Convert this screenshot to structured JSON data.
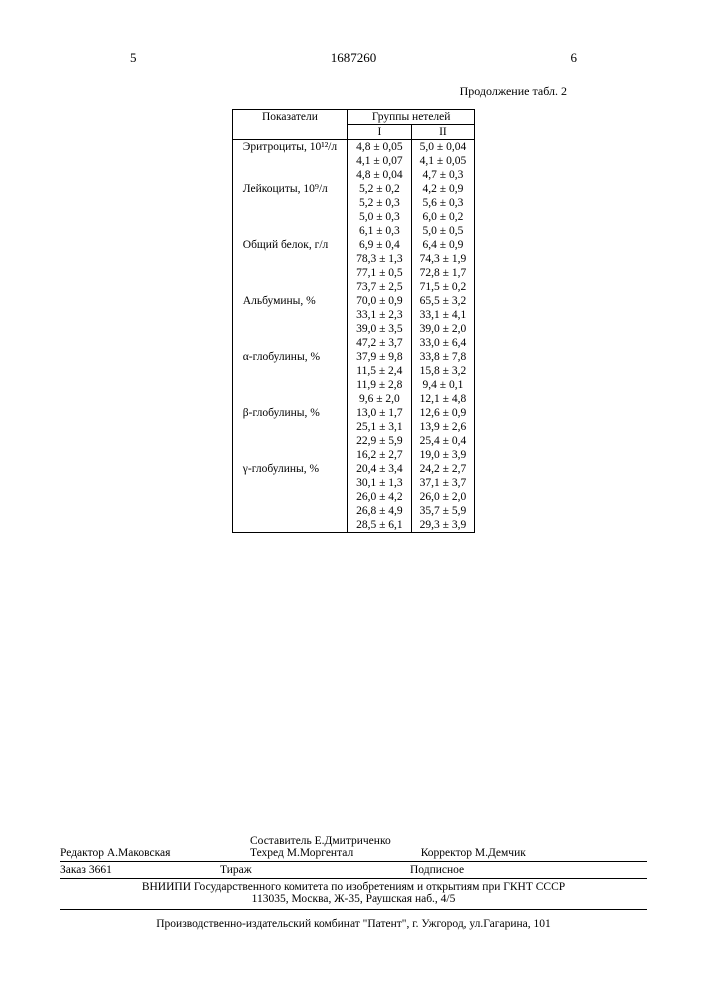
{
  "header": {
    "page_left": "5",
    "doc_number": "1687260",
    "page_right": "6",
    "caption": "Продолжение табл. 2"
  },
  "table": {
    "col_header_main": "Показатели",
    "col_group_span": "Группы нетелей",
    "col_g1": "I",
    "col_g2": "II",
    "groups": [
      {
        "label": "Эритроциты, 10¹²/л",
        "rows": [
          {
            "g1": "4,8 ± 0,05",
            "g2": "5,0 ± 0,04"
          },
          {
            "g1": "4,1 ± 0,07",
            "g2": "4,1 ± 0,05"
          },
          {
            "g1": "4,8 ± 0,04",
            "g2": "4,7 ± 0,3"
          }
        ]
      },
      {
        "label": "Лейкоциты, 10⁹/л",
        "rows": [
          {
            "g1": "5,2 ± 0,2",
            "g2": "4,2 ± 0,9"
          },
          {
            "g1": "5,2 ± 0,3",
            "g2": "5,6 ± 0,3"
          },
          {
            "g1": "5,0 ± 0,3",
            "g2": "6,0 ± 0,2"
          },
          {
            "g1": "6,1 ± 0,3",
            "g2": "5,0 ± 0,5"
          }
        ]
      },
      {
        "label": "Общий белок, г/л",
        "rows": [
          {
            "g1": "6,9 ± 0,4",
            "g2": "6,4 ± 0,9"
          },
          {
            "g1": "78,3 ± 1,3",
            "g2": "74,3 ± 1,9"
          },
          {
            "g1": "77,1 ± 0,5",
            "g2": "72,8 ± 1,7"
          },
          {
            "g1": "73,7 ± 2,5",
            "g2": "71,5 ± 0,2"
          }
        ]
      },
      {
        "label": "Альбумины, %",
        "rows": [
          {
            "g1": "70,0 ± 0,9",
            "g2": "65,5 ± 3,2"
          },
          {
            "g1": "33,1 ± 2,3",
            "g2": "33,1 ± 4,1"
          },
          {
            "g1": "39,0 ± 3,5",
            "g2": "39,0 ± 2,0"
          },
          {
            "g1": "47,2 ± 3,7",
            "g2": "33,0 ± 6,4"
          }
        ]
      },
      {
        "label": "α-глобулины, %",
        "rows": [
          {
            "g1": "37,9 ± 9,8",
            "g2": "33,8 ± 7,8"
          },
          {
            "g1": "11,5 ± 2,4",
            "g2": "15,8 ± 3,2"
          },
          {
            "g1": "11,9 ± 2,8",
            "g2": "9,4 ± 0,1"
          },
          {
            "g1": "9,6 ± 2,0",
            "g2": "12,1 ± 4,8"
          }
        ]
      },
      {
        "label": "β-глобулины, %",
        "rows": [
          {
            "g1": "13,0 ± 1,7",
            "g2": "12,6 ± 0,9"
          },
          {
            "g1": "25,1 ± 3,1",
            "g2": "13,9 ± 2,6"
          },
          {
            "g1": "22,9 ± 5,9",
            "g2": "25,4 ± 0,4"
          },
          {
            "g1": "16,2 ± 2,7",
            "g2": "19,0 ± 3,9"
          }
        ]
      },
      {
        "label": "γ-глобулины, %",
        "rows": [
          {
            "g1": "20,4 ± 3,4",
            "g2": "24,2 ± 2,7"
          },
          {
            "g1": "30,1 ± 1,3",
            "g2": "37,1 ± 3,7"
          },
          {
            "g1": "26,0 ± 4,2",
            "g2": "26,0 ± 2,0"
          },
          {
            "g1": "26,8 ± 4,9",
            "g2": "35,7 ± 5,9"
          },
          {
            "g1": "28,5 ± 6,1",
            "g2": "29,3 ± 3,9"
          }
        ]
      }
    ]
  },
  "footer": {
    "editor_label": "Редактор",
    "editor": "А.Маковская",
    "compiler_label": "Составитель",
    "compiler": "Е.Дмитриченко",
    "tech_label": "Техред",
    "tech": "М.Моргентал",
    "corrector_label": "Корректор",
    "corrector": "М.Демчик",
    "order_label": "Заказ",
    "order": "3661",
    "tirage_label": "Тираж",
    "subscribe": "Подписное",
    "institute": "ВНИИПИ Государственного комитета по изобретениям и открытиям при ГКНТ СССР",
    "institute_addr": "113035, Москва, Ж-35, Раушская наб., 4/5",
    "printer": "Производственно-издательский комбинат \"Патент\", г. Ужгород, ул.Гагарина, 101"
  }
}
